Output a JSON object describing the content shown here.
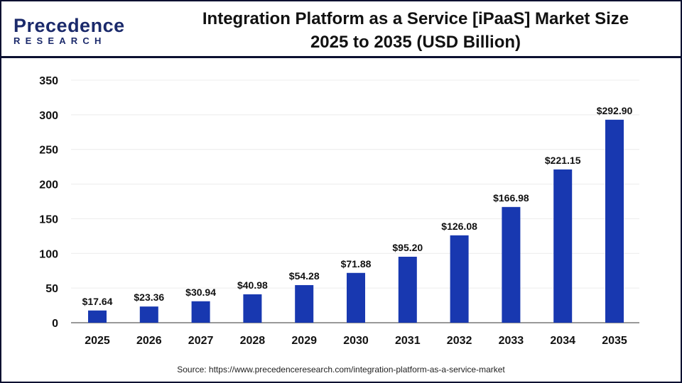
{
  "logo": {
    "line1": "Precedence",
    "line2": "RESEARCH"
  },
  "title_line1": "Integration Platform as a Service [iPaaS] Market Size",
  "title_line2": "2025 to 2035 (USD Billion)",
  "source": "Source: https://www.precedenceresearch.com/integration-platform-as-a-service-market",
  "colors": {
    "bar": "#1838b0",
    "frame": "#0b1030"
  },
  "chart_data": {
    "type": "bar",
    "categories": [
      "2025",
      "2026",
      "2027",
      "2028",
      "2029",
      "2030",
      "2031",
      "2032",
      "2033",
      "2034",
      "2035"
    ],
    "values": [
      17.64,
      23.36,
      30.94,
      40.98,
      54.28,
      71.88,
      95.2,
      126.08,
      166.98,
      221.15,
      292.9
    ],
    "data_labels": [
      "$17.64",
      "$23.36",
      "$30.94",
      "$40.98",
      "$54.28",
      "$71.88",
      "$95.20",
      "$126.08",
      "$166.98",
      "$221.15",
      "$292.90"
    ],
    "yticks": [
      0,
      50,
      100,
      150,
      200,
      250,
      300,
      350
    ],
    "ylim": [
      0,
      350
    ],
    "grid": true,
    "title": "Integration Platform as a Service [iPaaS] Market Size 2025 to 2035 (USD Billion)"
  }
}
